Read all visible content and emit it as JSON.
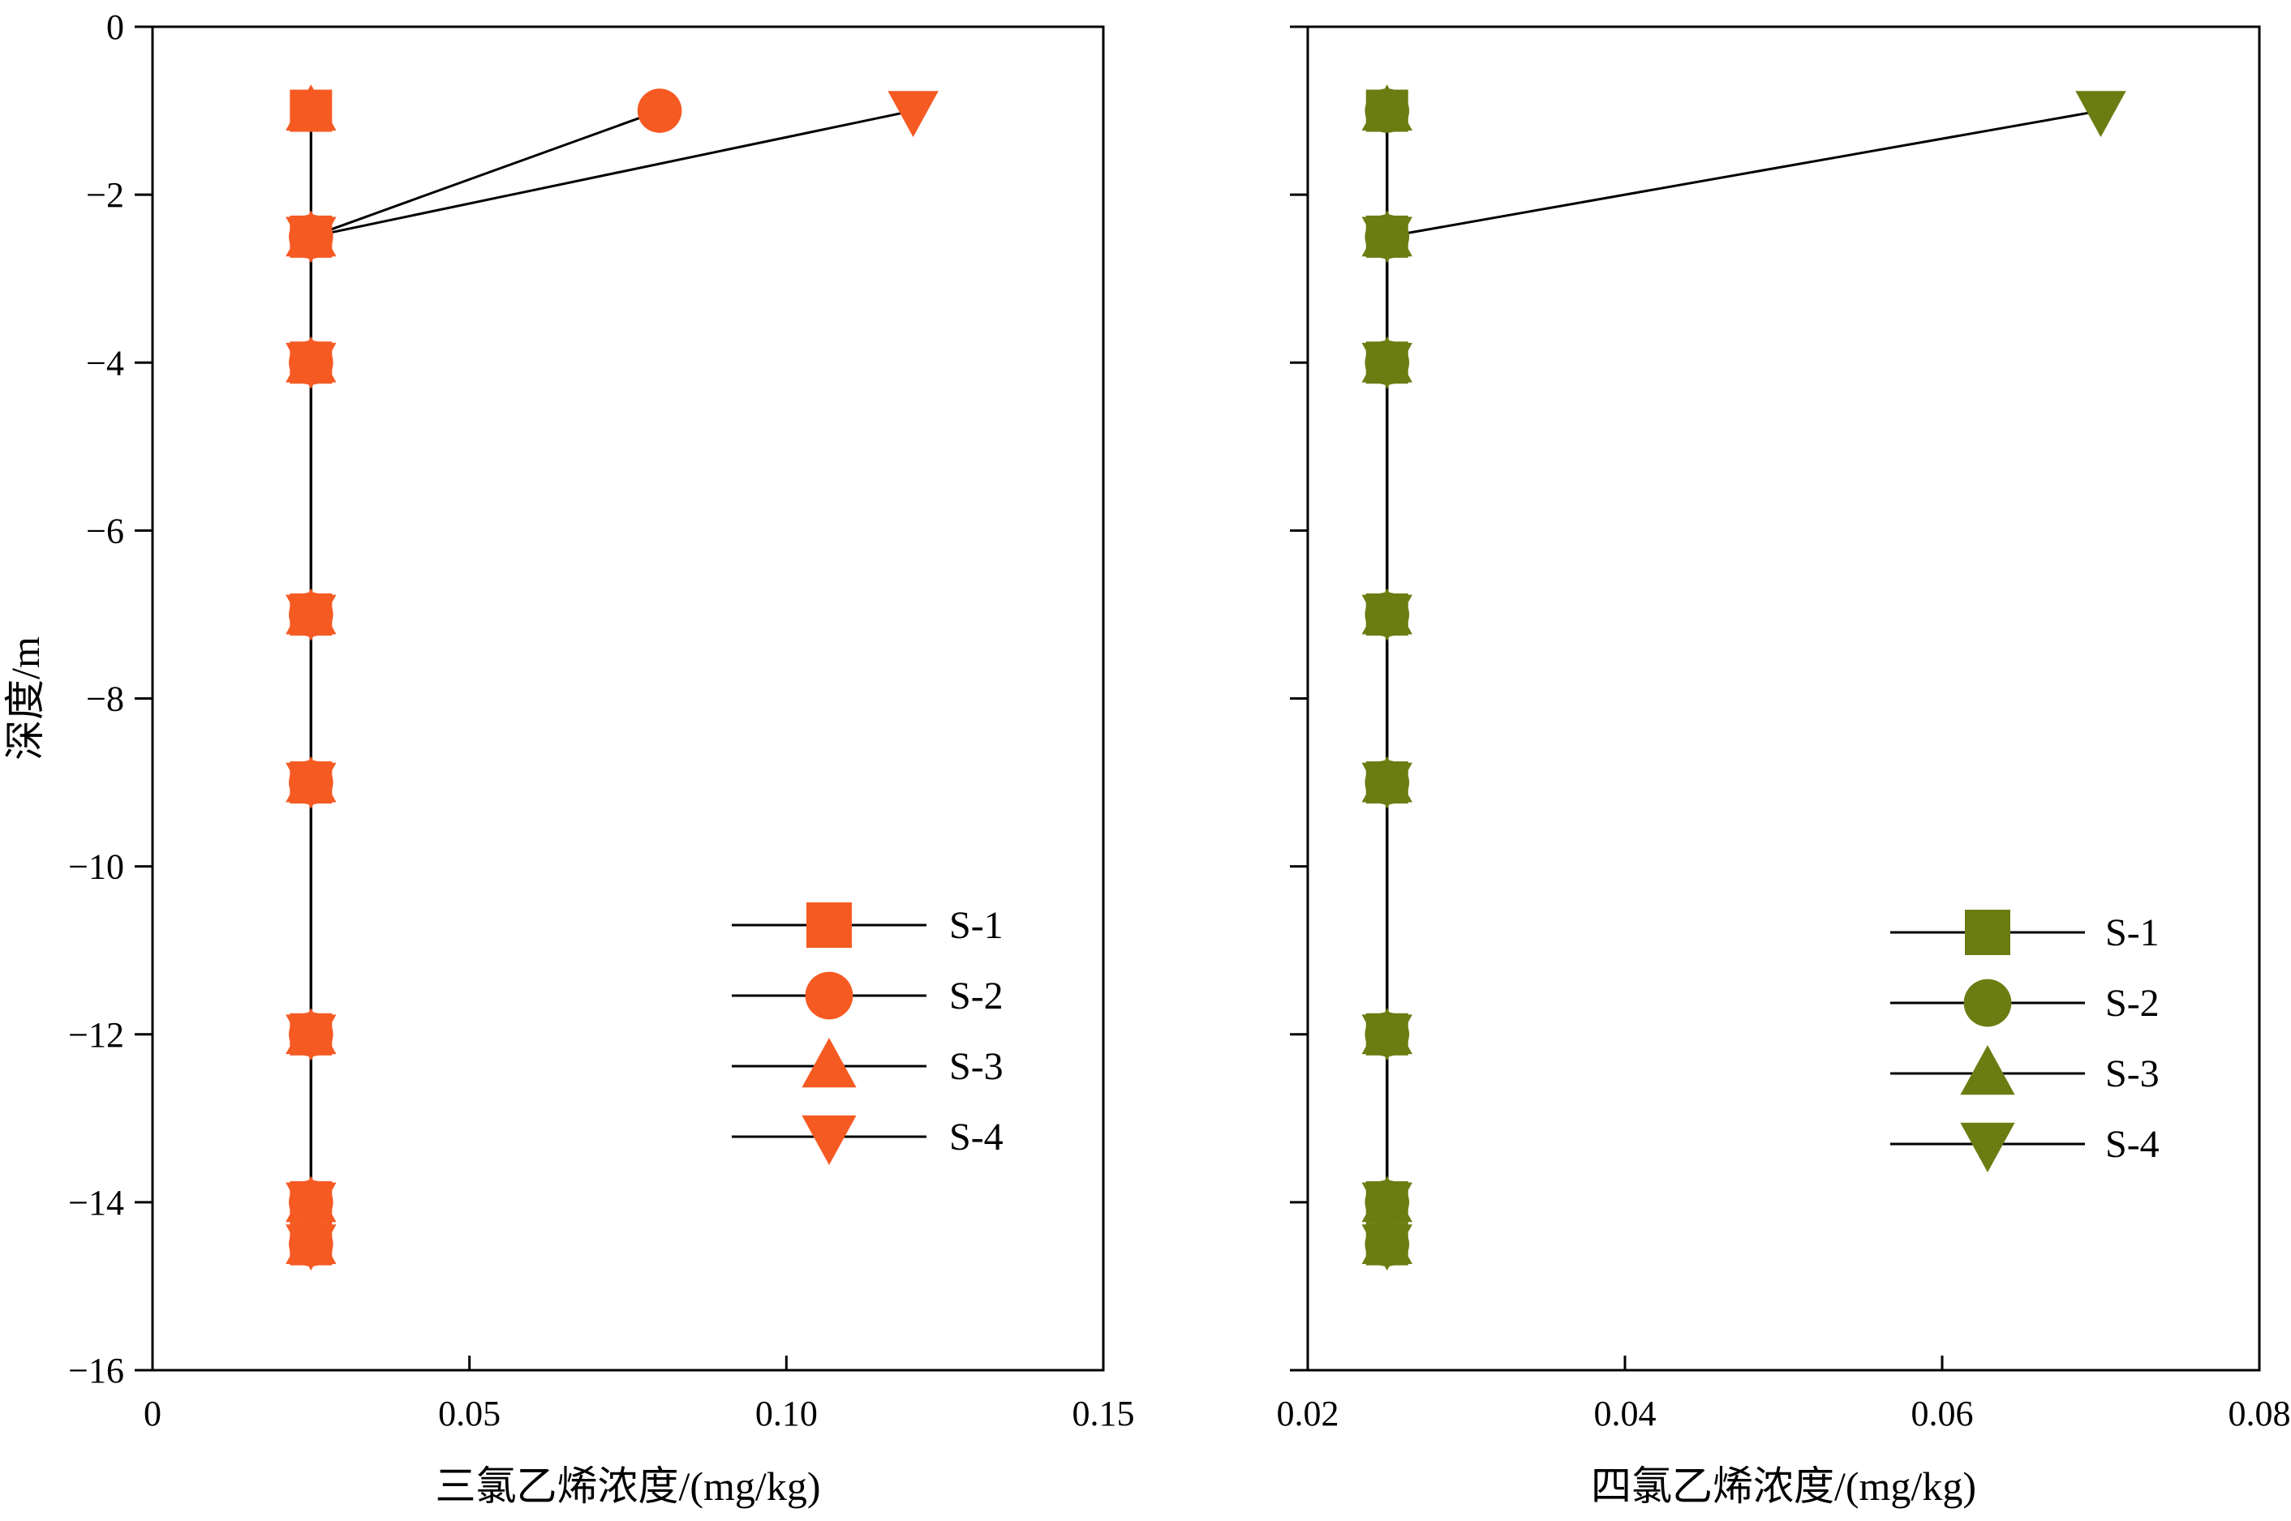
{
  "figure": {
    "depth_categories": [
      -1,
      -2.5,
      -4,
      -7,
      -9,
      -12,
      -14,
      -14.5
    ]
  },
  "chart_data": [
    {
      "type": "line",
      "name": "panel-tce",
      "xlabel": "三氯乙烯浓度/(mg/kg)",
      "ylabel": "深度/m",
      "xlim": [
        0,
        0.15
      ],
      "ylim": [
        -16,
        0
      ],
      "x_ticks": [
        "0",
        "0.05",
        "0.10",
        "0.15"
      ],
      "x_tick_values": [
        0,
        0.05,
        0.1,
        0.15
      ],
      "y_ticks": [
        "0",
        "−2",
        "−4",
        "−6",
        "−8",
        "−10",
        "−12",
        "−14",
        "−16"
      ],
      "y_tick_values": [
        0,
        -2,
        -4,
        -6,
        -8,
        -10,
        -12,
        -14,
        -16
      ],
      "color": "#f55a23",
      "legend_position": "lower-right",
      "series": [
        {
          "name": "S-1",
          "marker": "square",
          "x": [
            0.025,
            0.025,
            0.025,
            0.025,
            0.025,
            0.025,
            0.025,
            0.025
          ],
          "y": [
            -1,
            -2.5,
            -4,
            -7,
            -9,
            -12,
            -14,
            -14.5
          ]
        },
        {
          "name": "S-2",
          "marker": "circle",
          "x": [
            0.08,
            0.025,
            0.025,
            0.025,
            0.025,
            0.025,
            0.025,
            0.025
          ],
          "y": [
            -1,
            -2.5,
            -4,
            -7,
            -9,
            -12,
            -14,
            -14.5
          ]
        },
        {
          "name": "S-3",
          "marker": "triangle-up",
          "x": [
            0.025,
            0.025,
            0.025,
            0.025,
            0.025,
            0.025,
            0.025,
            0.025
          ],
          "y": [
            -1,
            -2.5,
            -4,
            -7,
            -9,
            -12,
            -14,
            -14.5
          ]
        },
        {
          "name": "S-4",
          "marker": "triangle-down",
          "x": [
            0.12,
            0.025,
            0.025,
            0.025,
            0.025,
            0.025,
            0.025,
            0.025
          ],
          "y": [
            -1,
            -2.5,
            -4,
            -7,
            -9,
            -12,
            -14,
            -14.5
          ]
        }
      ]
    },
    {
      "type": "line",
      "name": "panel-pce",
      "xlabel": "四氯乙烯浓度/(mg/kg)",
      "ylabel": "",
      "xlim": [
        0.02,
        0.08
      ],
      "ylim": [
        -16,
        0
      ],
      "x_ticks": [
        "0.02",
        "0.04",
        "0.06",
        "0.08"
      ],
      "x_tick_values": [
        0.02,
        0.04,
        0.06,
        0.08
      ],
      "y_ticks": [],
      "y_tick_values": [
        0,
        -2,
        -4,
        -6,
        -8,
        -10,
        -12,
        -14,
        -16
      ],
      "color": "#6b7d12",
      "legend_position": "lower-right",
      "series": [
        {
          "name": "S-1",
          "marker": "square",
          "x": [
            0.025,
            0.025,
            0.025,
            0.025,
            0.025,
            0.025,
            0.025,
            0.025
          ],
          "y": [
            -1,
            -2.5,
            -4,
            -7,
            -9,
            -12,
            -14,
            -14.5
          ]
        },
        {
          "name": "S-2",
          "marker": "circle",
          "x": [
            0.025,
            0.025,
            0.025,
            0.025,
            0.025,
            0.025,
            0.025,
            0.025
          ],
          "y": [
            -1,
            -2.5,
            -4,
            -7,
            -9,
            -12,
            -14,
            -14.5
          ]
        },
        {
          "name": "S-3",
          "marker": "triangle-up",
          "x": [
            0.025,
            0.025,
            0.025,
            0.025,
            0.025,
            0.025,
            0.025,
            0.025
          ],
          "y": [
            -1,
            -2.5,
            -4,
            -7,
            -9,
            -12,
            -14,
            -14.5
          ]
        },
        {
          "name": "S-4",
          "marker": "triangle-down",
          "x": [
            0.07,
            0.025,
            0.025,
            0.025,
            0.025,
            0.025,
            0.025,
            0.025
          ],
          "y": [
            -1,
            -2.5,
            -4,
            -7,
            -9,
            -12,
            -14,
            -14.5
          ]
        }
      ]
    }
  ]
}
